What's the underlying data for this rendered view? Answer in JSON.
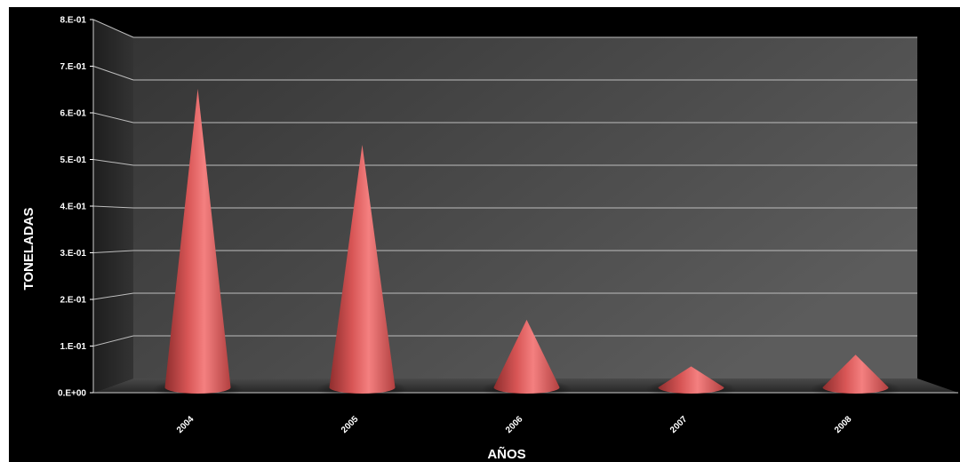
{
  "chart_data": {
    "type": "bar",
    "bar_shape": "cone",
    "categories": [
      "2004",
      "2005",
      "2006",
      "2007",
      "2008"
    ],
    "values": [
      0.64,
      0.52,
      0.145,
      0.045,
      0.07
    ],
    "ylim": [
      0,
      0.8
    ],
    "yticks": [
      "0.E+00",
      "1.E-01",
      "2.E-01",
      "3.E-01",
      "4.E-01",
      "5.E-01",
      "6.E-01",
      "7.E-01",
      "8.E-01"
    ],
    "xlabel": "AÑOS",
    "ylabel": "TONELADAS",
    "grid": true,
    "colors": {
      "cone": "#e35d5d",
      "background": "#000000",
      "wall": "#4a4a4a",
      "side_wall": "#2e2e2e",
      "floor": "#3a3a3a",
      "gridline": "#bdbdbd",
      "text": "#ffffff"
    }
  }
}
